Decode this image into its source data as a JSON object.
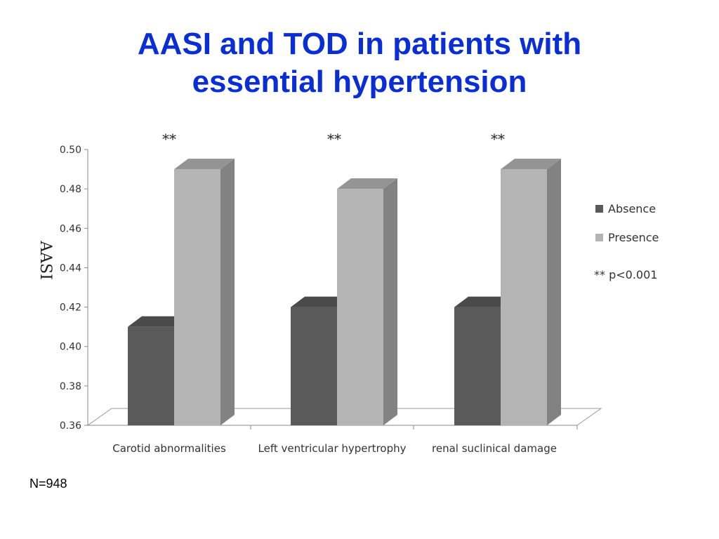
{
  "title": {
    "line1": "AASI and TOD in patients with",
    "line2": "essential hypertension"
  },
  "note": "N=948",
  "chart_data": {
    "type": "bar",
    "categories": [
      "Carotid abnormalities",
      "Left ventricular hypertrophy",
      "renal suclinical damage"
    ],
    "series": [
      {
        "name": "Absence",
        "values": [
          0.41,
          0.42,
          0.42
        ],
        "color": "#5a5a5a"
      },
      {
        "name": "Presence",
        "values": [
          0.49,
          0.48,
          0.49
        ],
        "color": "#b4b4b4"
      }
    ],
    "significance": [
      "**",
      "**",
      "**"
    ],
    "legend_note": "** p<0.001",
    "ylabel": "AASI",
    "xlabel": "",
    "ylim": [
      0.36,
      0.5
    ],
    "yticks": [
      "0.50",
      "0.48",
      "0.46",
      "0.44",
      "0.42",
      "0.40",
      "0.38",
      "0.36"
    ],
    "legend_position": "right",
    "style": "3d-clustered-bar",
    "grid": false
  }
}
